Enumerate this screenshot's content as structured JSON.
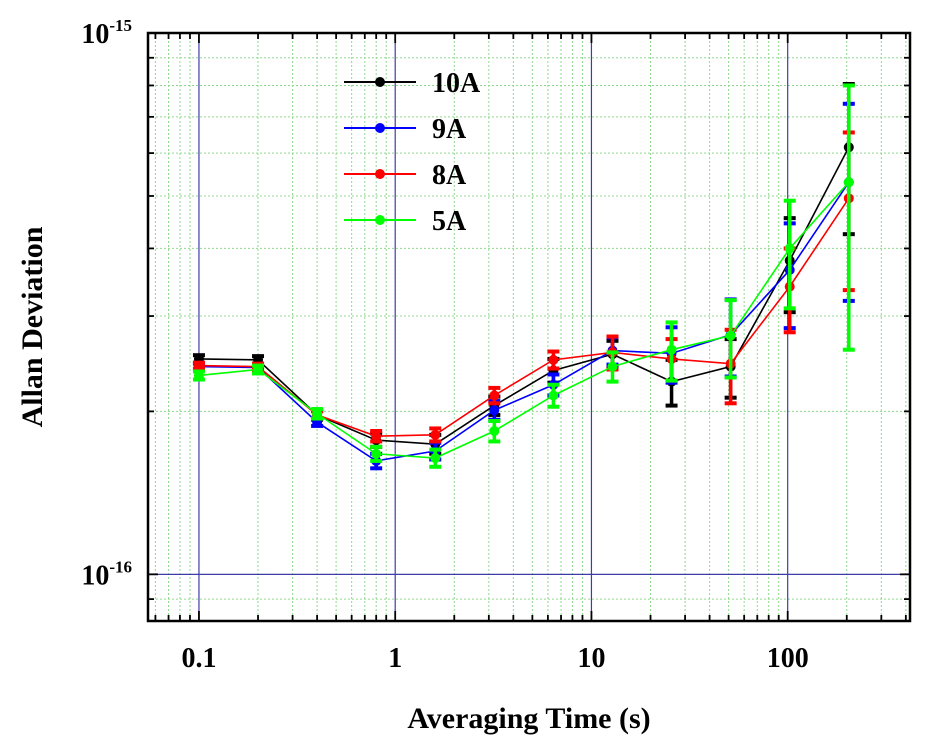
{
  "chart_data": {
    "type": "line",
    "xlabel": "Averaging Time (s)",
    "ylabel": "Allan Deviation",
    "x_scale": "log",
    "y_scale": "log",
    "xlim": [
      0.055,
      420
    ],
    "ylim": [
      8.2e-17,
      1e-15
    ],
    "x_ticks": [
      {
        "value": 0.1,
        "label": "0.1"
      },
      {
        "value": 1,
        "label": "1"
      },
      {
        "value": 10,
        "label": "10"
      },
      {
        "value": 100,
        "label": "100"
      }
    ],
    "y_ticks": [
      {
        "value": 1e-16,
        "base": "10",
        "exp": "-16"
      },
      {
        "value": 1e-15,
        "base": "10",
        "exp": "-15"
      }
    ],
    "grid": true,
    "legend_position": "top-left",
    "x": [
      0.1,
      0.2,
      0.4,
      0.8,
      1.6,
      3.2,
      6.4,
      12.8,
      25.6,
      51.2,
      102.4,
      204.8
    ],
    "series": [
      {
        "name": "10A",
        "color": "#000000",
        "values": [
          2.5e-16,
          2.49e-16,
          1.97e-16,
          1.77e-16,
          1.74e-16,
          2.05e-16,
          2.38e-16,
          2.55e-16,
          2.27e-16,
          2.42e-16,
          3.8e-16,
          6.15e-16
        ],
        "errors": [
          4e-18,
          4e-18,
          4e-18,
          5e-18,
          7e-18,
          8e-18,
          1.2e-17,
          1.5e-17,
          2.2e-17,
          3e-17,
          7.5e-17,
          1.9e-16
        ]
      },
      {
        "name": "9A",
        "color": "#0000ff",
        "values": [
          2.42e-16,
          2.41e-16,
          1.91e-16,
          1.62e-16,
          1.69e-16,
          2.01e-16,
          2.24e-16,
          2.59e-16,
          2.56e-16,
          2.77e-16,
          3.65e-16,
          5.3e-16
        ],
        "errors": [
          3e-18,
          3e-18,
          3e-18,
          5e-18,
          6e-18,
          8e-18,
          1e-17,
          1.5e-17,
          3e-17,
          4.5e-17,
          8e-17,
          2.1e-16
        ]
      },
      {
        "name": "8A",
        "color": "#ff0000",
        "values": [
          2.43e-16,
          2.42e-16,
          1.97e-16,
          1.8e-16,
          1.81e-16,
          2.14e-16,
          2.49e-16,
          2.57e-16,
          2.5e-16,
          2.45e-16,
          3.4e-16,
          4.95e-16
        ],
        "errors": [
          3e-18,
          3e-18,
          3e-18,
          4e-18,
          5e-18,
          7e-18,
          9e-18,
          1.8e-17,
          2.2e-17,
          3.8e-17,
          6e-17,
          1.6e-16
        ]
      },
      {
        "name": "5A",
        "color": "#00ff00",
        "values": [
          2.33e-16,
          2.39e-16,
          1.98e-16,
          1.67e-16,
          1.64e-16,
          1.84e-16,
          2.14e-16,
          2.42e-16,
          2.6e-16,
          2.76e-16,
          4e-16,
          5.3e-16
        ],
        "errors": [
          4e-18,
          4e-18,
          4e-18,
          5e-18,
          6e-18,
          8e-18,
          1e-17,
          1.5e-17,
          3.2e-17,
          4.5e-17,
          9e-17,
          2.7e-16
        ]
      }
    ]
  }
}
